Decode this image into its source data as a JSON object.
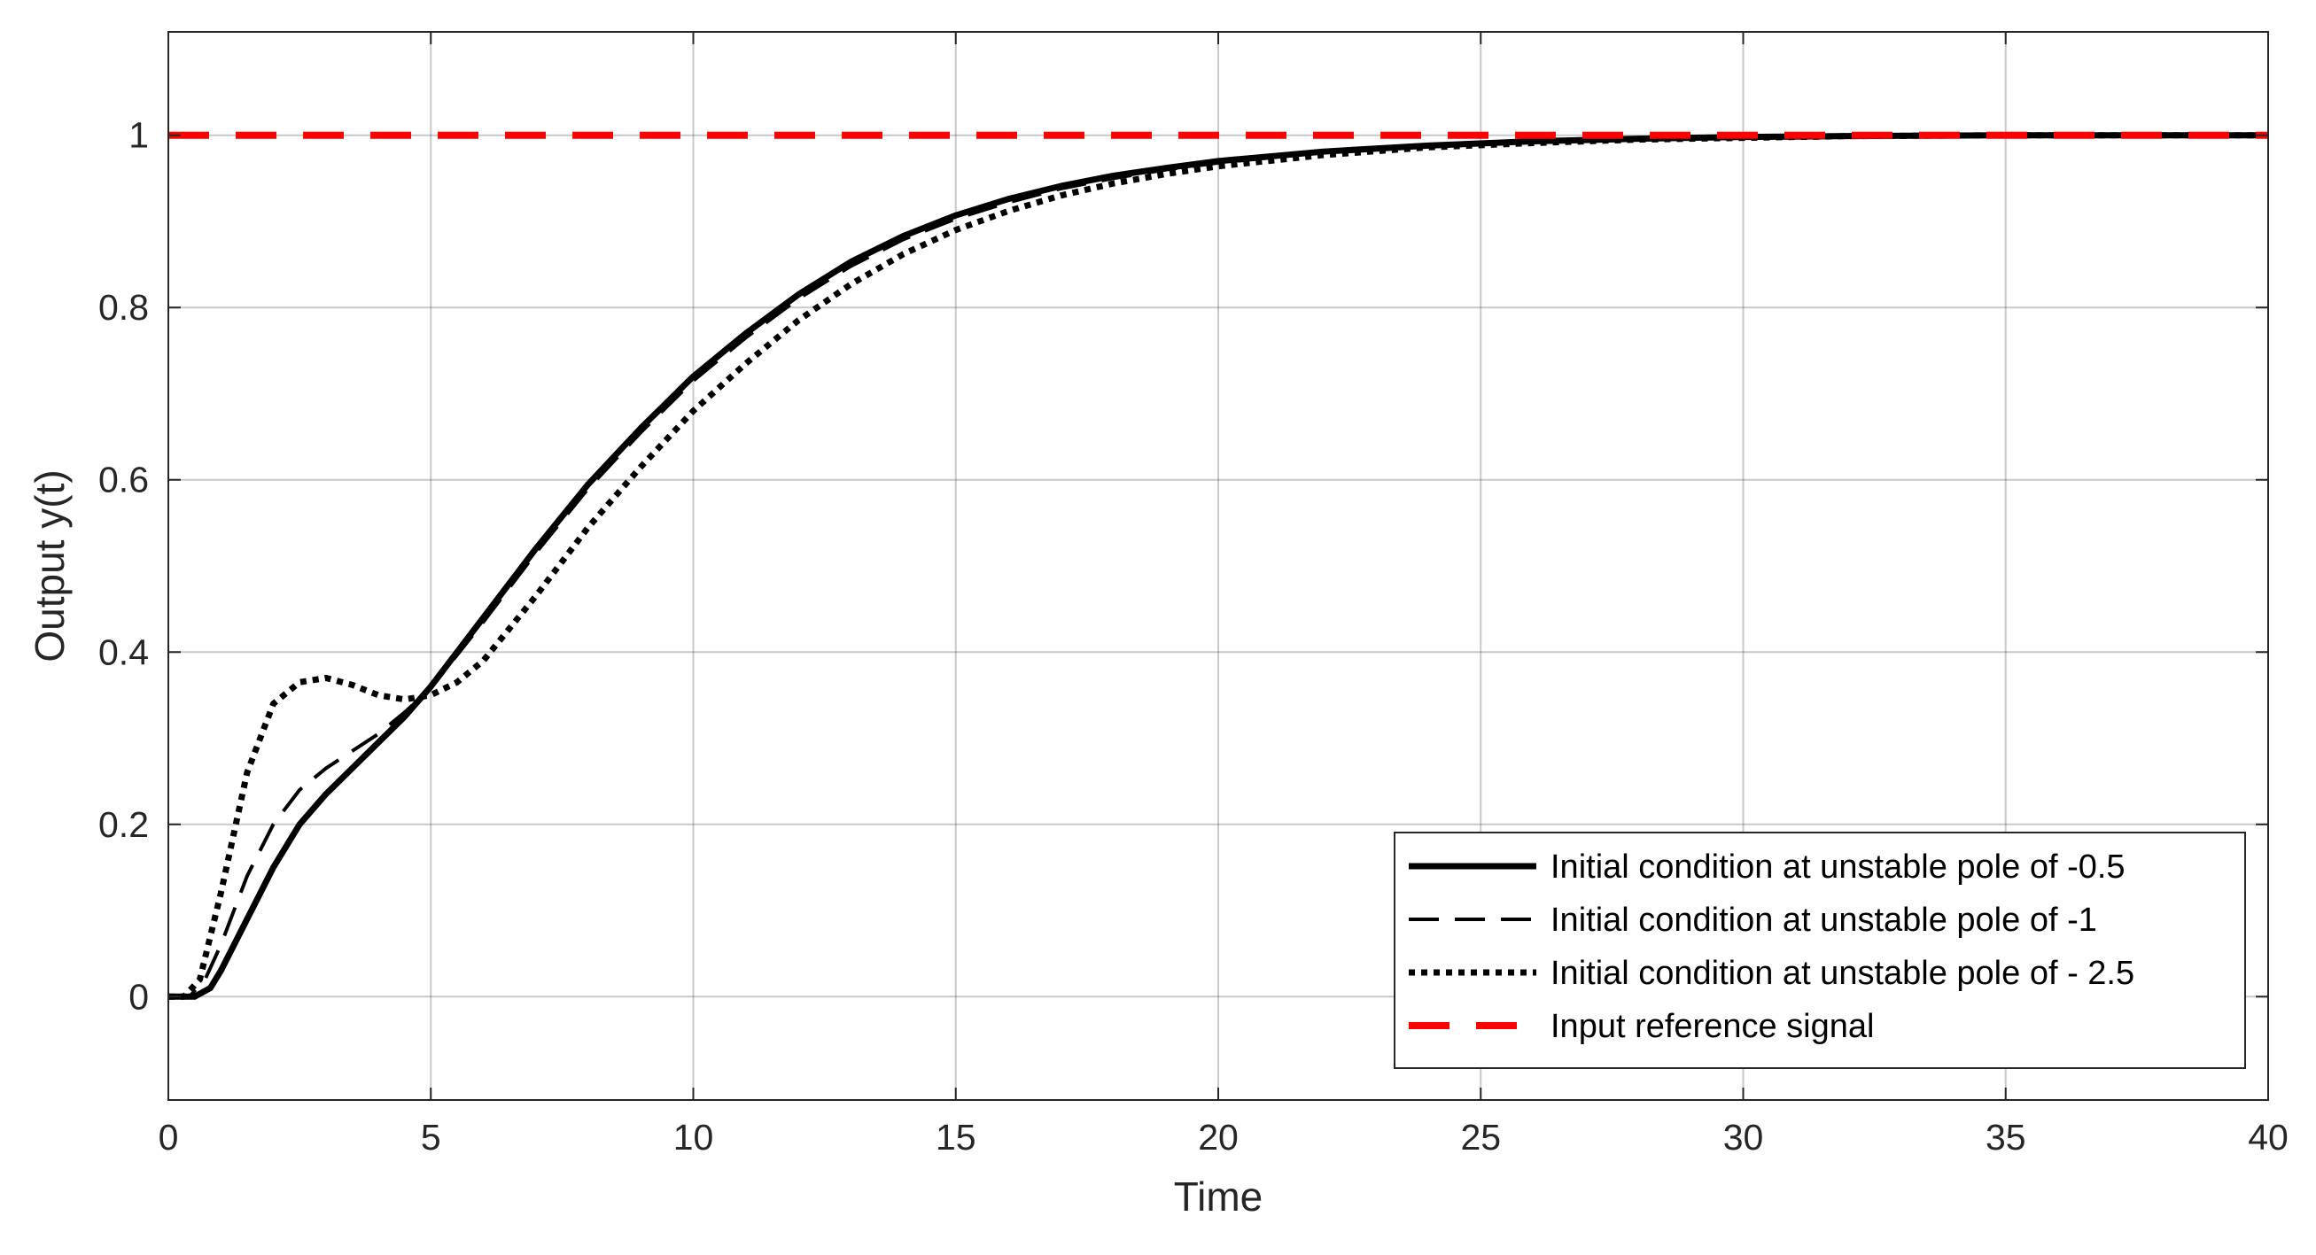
{
  "chart_data": {
    "type": "line",
    "title": "",
    "xlabel": "Time",
    "ylabel": "Output y(t)",
    "xlim": [
      0,
      40
    ],
    "ylim": [
      -0.12,
      1.12
    ],
    "xticks": [
      0,
      5,
      10,
      15,
      20,
      25,
      30,
      35,
      40
    ],
    "yticks": [
      0,
      0.2,
      0.4,
      0.6,
      0.8,
      1
    ],
    "xtick_labels": [
      "0",
      "5",
      "10",
      "15",
      "20",
      "25",
      "30",
      "35",
      "40"
    ],
    "ytick_labels": [
      "0",
      "0.2",
      "0.4",
      "0.6",
      "0.8",
      "1"
    ],
    "grid": true,
    "legend_position": "bottom-right",
    "series": [
      {
        "name": "Initial condition at unstable pole of -0.5",
        "color": "#000000",
        "style": "solid",
        "x": [
          0,
          0.5,
          0.8,
          1,
          1.5,
          2,
          2.5,
          3,
          3.5,
          4,
          4.5,
          5,
          6,
          7,
          8,
          9,
          10,
          11,
          12,
          13,
          14,
          15,
          16,
          17,
          18,
          19,
          20,
          22,
          24,
          26,
          28,
          30,
          32,
          35,
          40
        ],
        "y": [
          0,
          0,
          0.01,
          0.03,
          0.09,
          0.15,
          0.2,
          0.235,
          0.265,
          0.295,
          0.325,
          0.36,
          0.44,
          0.52,
          0.595,
          0.66,
          0.72,
          0.77,
          0.815,
          0.853,
          0.883,
          0.907,
          0.926,
          0.941,
          0.953,
          0.962,
          0.97,
          0.981,
          0.988,
          0.993,
          0.996,
          0.998,
          0.999,
          1.0,
          1.0
        ]
      },
      {
        "name": "Initial condition at unstable pole of -1",
        "color": "#000000",
        "style": "dashed",
        "x": [
          0,
          0.4,
          0.7,
          1,
          1.5,
          2,
          2.5,
          3,
          3.5,
          4,
          4.5,
          5,
          6,
          7,
          8,
          9,
          10,
          11,
          12,
          13,
          14,
          15,
          16,
          17,
          18,
          19,
          20,
          22,
          24,
          26,
          28,
          30,
          32,
          35,
          40
        ],
        "y": [
          0,
          0,
          0.02,
          0.06,
          0.14,
          0.2,
          0.24,
          0.265,
          0.285,
          0.305,
          0.33,
          0.358,
          0.435,
          0.515,
          0.59,
          0.655,
          0.715,
          0.765,
          0.81,
          0.848,
          0.879,
          0.903,
          0.922,
          0.938,
          0.95,
          0.96,
          0.968,
          0.98,
          0.987,
          0.992,
          0.995,
          0.997,
          0.999,
          1.0,
          1.0
        ]
      },
      {
        "name": "Initial condition at unstable pole of - 2.5",
        "color": "#000000",
        "style": "dotted",
        "x": [
          0,
          0.3,
          0.6,
          1,
          1.5,
          2,
          2.5,
          3,
          3.5,
          4,
          4.5,
          5,
          5.5,
          6,
          7,
          8,
          9,
          10,
          11,
          12,
          13,
          14,
          15,
          16,
          17,
          18,
          19,
          20,
          22,
          24,
          26,
          28,
          30,
          32,
          35,
          40
        ],
        "y": [
          0,
          0,
          0.02,
          0.12,
          0.26,
          0.34,
          0.365,
          0.37,
          0.362,
          0.35,
          0.345,
          0.35,
          0.365,
          0.39,
          0.465,
          0.545,
          0.615,
          0.68,
          0.735,
          0.785,
          0.827,
          0.862,
          0.89,
          0.912,
          0.93,
          0.944,
          0.955,
          0.964,
          0.977,
          0.986,
          0.991,
          0.995,
          0.997,
          0.999,
          1.0,
          1.0
        ]
      },
      {
        "name": "Input reference signal",
        "color": "#ff0000",
        "style": "dashed-thick",
        "x": [
          0,
          40
        ],
        "y": [
          1,
          1
        ]
      }
    ]
  }
}
